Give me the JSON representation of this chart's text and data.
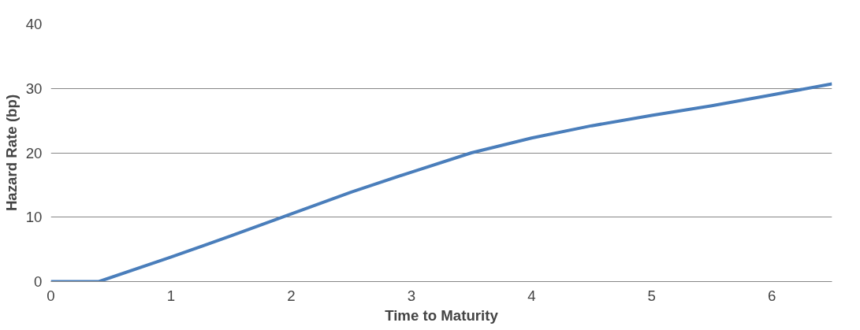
{
  "chart_data": {
    "type": "line",
    "xlabel": "Time to Maturity",
    "ylabel": "Hazard Rate (bp)",
    "x": [
      0,
      0.4,
      1,
      1.5,
      2,
      2.5,
      3,
      3.5,
      4,
      4.5,
      5,
      5.5,
      6,
      6.5
    ],
    "series": [
      {
        "color": "#4a7ebb",
        "values": [
          0,
          0,
          3.8,
          7.1,
          10.5,
          13.9,
          17,
          20,
          22.3,
          24.2,
          25.8,
          27.3,
          29,
          30.7
        ]
      }
    ],
    "xlim": [
      0,
      6.5
    ],
    "ylim": [
      0,
      40
    ],
    "xticks": [
      0,
      1,
      2,
      3,
      4,
      5,
      6
    ],
    "yticks": [
      0,
      10,
      20,
      30,
      40
    ],
    "grid": "y",
    "marker": "none",
    "line_style": "solid"
  }
}
